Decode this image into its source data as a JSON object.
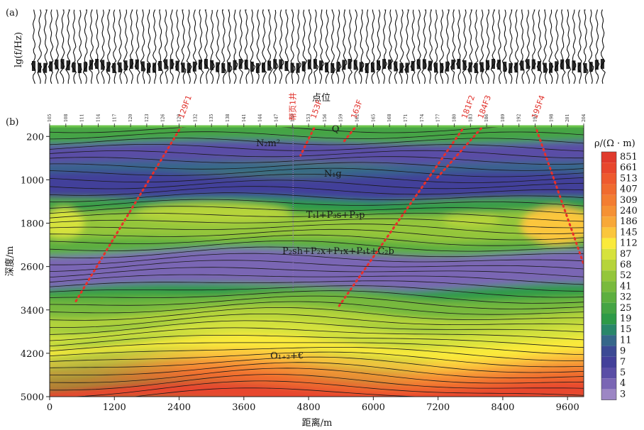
{
  "panel_a": {
    "label": "(a)",
    "ylabel": "lg(f/Hz)"
  },
  "panel_b": {
    "label": "(b)",
    "station_axis_title": "点位",
    "stations": [
      "105",
      "108",
      "111",
      "114",
      "117",
      "120",
      "123",
      "126",
      "129",
      "132",
      "135",
      "138",
      "141",
      "144",
      "147",
      "150",
      "153",
      "156",
      "159",
      "162",
      "165",
      "168",
      "171",
      "174",
      "177",
      "180",
      "183",
      "186",
      "189",
      "192",
      "195",
      "198",
      "201",
      "204"
    ],
    "well_label": "帮页1井"
  },
  "colorbar": {
    "title": "ρ/(Ω · m)",
    "values": [
      "851",
      "661",
      "513",
      "407",
      "309",
      "240",
      "186",
      "145",
      "112",
      "87",
      "68",
      "52",
      "41",
      "32",
      "25",
      "19",
      "15",
      "11",
      "9",
      "7",
      "5",
      "4",
      "3"
    ],
    "colors": [
      "#e03a2c",
      "#e8472d",
      "#ee5a2e",
      "#f06b2f",
      "#f37d31",
      "#f59134",
      "#f8a838",
      "#fbc63c",
      "#faea3b",
      "#d6e23c",
      "#b6d43b",
      "#94c63b",
      "#79ba3d",
      "#5daf3f",
      "#45a444",
      "#2e9a48",
      "#29876a",
      "#36678a",
      "#3c4a94",
      "#43409a",
      "#5a4ea6",
      "#7a66b4",
      "#9c86c4"
    ]
  },
  "chart_data": {
    "type": "heatmap",
    "xlabel": "距离/m",
    "ylabel": "深度/m",
    "xlim": [
      0,
      9900
    ],
    "ylim": [
      5000,
      0
    ],
    "x_ticks": [
      0,
      1200,
      2400,
      3600,
      4800,
      6000,
      7200,
      8400,
      9600
    ],
    "y_ticks": [
      200,
      1000,
      1800,
      2600,
      3400,
      4200,
      5000
    ],
    "colorbar_unit": "ρ/(Ω · m)",
    "formations": [
      {
        "name": "Q",
        "x": 5300,
        "y": 120
      },
      {
        "name": "N₂m²",
        "x": 4050,
        "y": 380
      },
      {
        "name": "N₁g",
        "x": 5250,
        "y": 940
      },
      {
        "name": "T₁l+P₃s+P₃p",
        "x": 5300,
        "y": 1700
      },
      {
        "name": "P₂sh+P₂x+P₁x+P₁t+C₂b",
        "x": 5350,
        "y": 2370
      },
      {
        "name": "O₁₊₂+€",
        "x": 4400,
        "y": 4300
      }
    ],
    "faults": [
      {
        "name": "129F1",
        "top": [
          2450,
          0
        ],
        "bottom": [
          480,
          3250
        ]
      },
      {
        "name": "153F",
        "top": [
          4900,
          50
        ],
        "bottom": [
          4650,
          550
        ]
      },
      {
        "name": "163F",
        "top": [
          5650,
          50
        ],
        "bottom": [
          5450,
          300
        ]
      },
      {
        "name": "181F2",
        "top": [
          7700,
          0
        ],
        "bottom": [
          5350,
          3350
        ]
      },
      {
        "name": "184F3",
        "top": [
          8000,
          50
        ],
        "bottom": [
          7150,
          1000
        ]
      },
      {
        "name": "195F4",
        "top": [
          9000,
          0
        ],
        "bottom": [
          9950,
          2700
        ]
      }
    ]
  }
}
